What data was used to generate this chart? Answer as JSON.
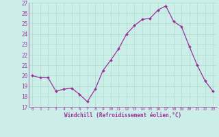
{
  "x": [
    0,
    1,
    2,
    3,
    4,
    5,
    6,
    7,
    8,
    9,
    10,
    11,
    12,
    13,
    14,
    15,
    16,
    17,
    18,
    19,
    20,
    21,
    22,
    23
  ],
  "y": [
    20.0,
    19.8,
    19.8,
    18.5,
    18.7,
    18.8,
    18.2,
    17.5,
    18.7,
    20.5,
    21.5,
    22.6,
    24.0,
    24.8,
    25.4,
    25.5,
    26.3,
    26.7,
    25.2,
    24.7,
    22.8,
    21.0,
    19.5,
    18.5
  ],
  "line_color": "#993399",
  "marker": "D",
  "marker_size": 2,
  "bg_color": "#cceee8",
  "grid_color": "#aaddcc",
  "xlabel": "Windchill (Refroidissement éolien,°C)",
  "xlabel_color": "#993399",
  "tick_color": "#993399",
  "ylim": [
    17,
    27
  ],
  "xlim_min": -0.5,
  "xlim_max": 23.5,
  "yticks": [
    17,
    18,
    19,
    20,
    21,
    22,
    23,
    24,
    25,
    26,
    27
  ],
  "xticks": [
    0,
    1,
    2,
    3,
    4,
    5,
    6,
    7,
    8,
    9,
    10,
    11,
    12,
    13,
    14,
    15,
    16,
    17,
    18,
    19,
    20,
    21,
    22,
    23
  ]
}
